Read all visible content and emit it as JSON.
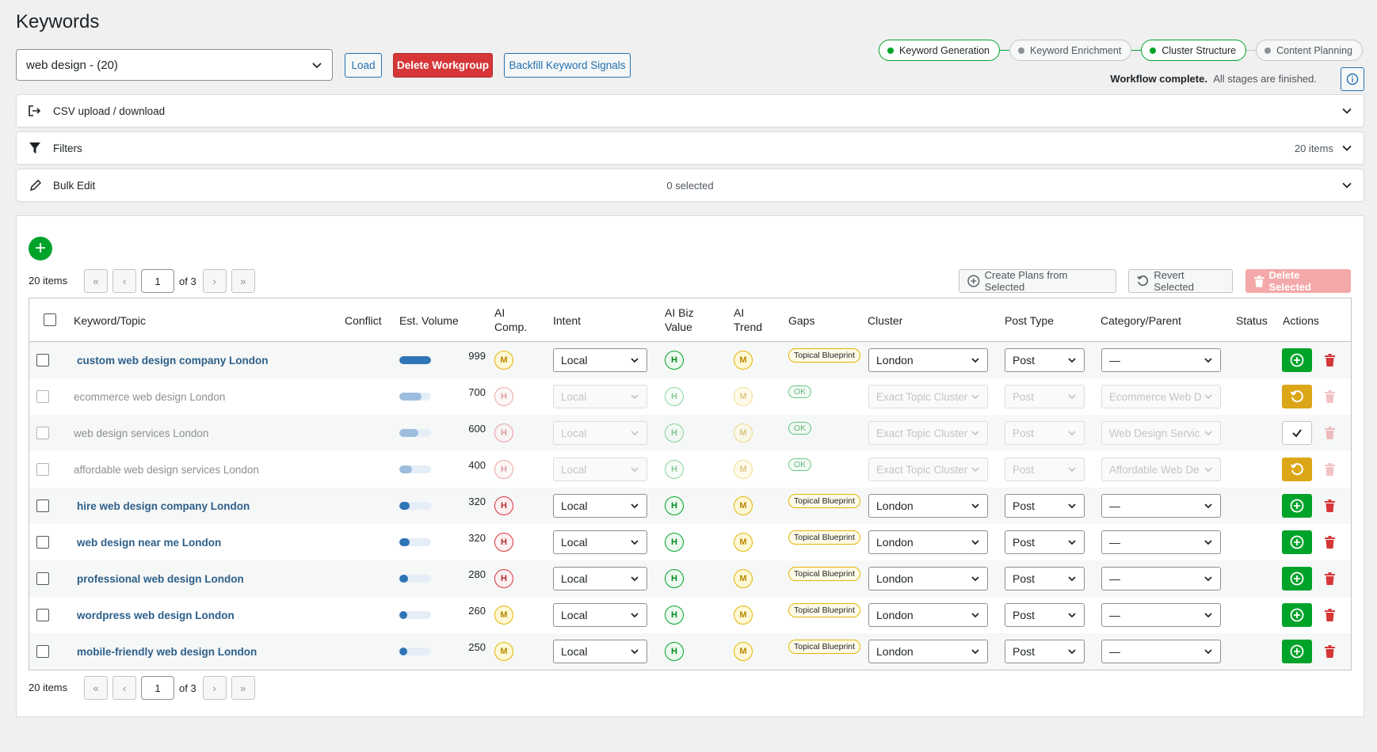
{
  "page": {
    "title": "Keywords"
  },
  "workgroup": {
    "selected": "web design - (20)"
  },
  "buttons": {
    "load": "Load",
    "delete_workgroup": "Delete Workgroup",
    "backfill": "Backfill Keyword Signals"
  },
  "workflow": {
    "steps": [
      {
        "label": "Keyword Generation",
        "done": true
      },
      {
        "label": "Keyword Enrichment",
        "done": false
      },
      {
        "label": "Cluster Structure",
        "done": true
      },
      {
        "label": "Content Planning",
        "done": false
      }
    ],
    "status_bold": "Workflow complete.",
    "status_text": "All stages are finished."
  },
  "accordions": {
    "csv": "CSV upload / download",
    "filters": "Filters",
    "filters_count": "20 items",
    "bulk": "Bulk Edit",
    "bulk_selected": "0 selected"
  },
  "pagination": {
    "items": "20 items",
    "page": "1",
    "of": "of 3",
    "first": "«",
    "prev": "‹",
    "next": "›",
    "last": "»"
  },
  "toolbar": {
    "create_plans": "Create Plans from Selected",
    "revert": "Revert Selected",
    "delete": "Delete Selected"
  },
  "columns": {
    "keyword": "Keyword/Topic",
    "conflict": "Conflict",
    "volume": "Est. Volume",
    "ai_comp_1": "AI",
    "ai_comp_2": "Comp.",
    "intent": "Intent",
    "ai_biz_1": "AI Biz",
    "ai_biz_2": "Value",
    "ai_trend_1": "AI",
    "ai_trend_2": "Trend",
    "gaps": "Gaps",
    "cluster": "Cluster",
    "post_type": "Post Type",
    "category": "Category/Parent",
    "status": "Status",
    "actions": "Actions"
  },
  "rows": [
    {
      "keyword": "custom web design company London",
      "volume": "999",
      "volume_fraction": 1.0,
      "comp": "M",
      "intent": "Local",
      "biz": "H",
      "trend": "M",
      "gaps": "Topical Blueprint",
      "cluster": "London",
      "post_type": "Post",
      "category": "—",
      "dim": false,
      "action": "plus"
    },
    {
      "keyword": "ecommerce web design London",
      "volume": "700",
      "volume_fraction": 0.7,
      "comp": "H",
      "intent": "Local",
      "biz": "H",
      "trend": "M",
      "gaps": "OK",
      "cluster": "Exact Topic Cluster",
      "post_type": "Post",
      "category": "Ecommerce Web D",
      "dim": true,
      "action": "undo"
    },
    {
      "keyword": "web design services London",
      "volume": "600",
      "volume_fraction": 0.6,
      "comp": "H",
      "intent": "Local",
      "biz": "H",
      "trend": "M",
      "gaps": "OK",
      "cluster": "Exact Topic Cluster",
      "post_type": "Post",
      "category": "Web Design Servic",
      "dim": true,
      "action": "check"
    },
    {
      "keyword": "affordable web design services London",
      "volume": "400",
      "volume_fraction": 0.4,
      "comp": "H",
      "intent": "Local",
      "biz": "H",
      "trend": "M",
      "gaps": "OK",
      "cluster": "Exact Topic Cluster",
      "post_type": "Post",
      "category": "Affordable Web De",
      "dim": true,
      "action": "undo"
    },
    {
      "keyword": "hire web design company London",
      "volume": "320",
      "volume_fraction": 0.32,
      "comp": "H",
      "intent": "Local",
      "biz": "H",
      "trend": "M",
      "gaps": "Topical Blueprint",
      "cluster": "London",
      "post_type": "Post",
      "category": "—",
      "dim": false,
      "action": "plus"
    },
    {
      "keyword": "web design near me London",
      "volume": "320",
      "volume_fraction": 0.32,
      "comp": "H",
      "intent": "Local",
      "biz": "H",
      "trend": "M",
      "gaps": "Topical Blueprint",
      "cluster": "London",
      "post_type": "Post",
      "category": "—",
      "dim": false,
      "action": "plus"
    },
    {
      "keyword": "professional web design London",
      "volume": "280",
      "volume_fraction": 0.28,
      "comp": "H",
      "intent": "Local",
      "biz": "H",
      "trend": "M",
      "gaps": "Topical Blueprint",
      "cluster": "London",
      "post_type": "Post",
      "category": "—",
      "dim": false,
      "action": "plus"
    },
    {
      "keyword": "wordpress web design London",
      "volume": "260",
      "volume_fraction": 0.26,
      "comp": "M",
      "intent": "Local",
      "biz": "H",
      "trend": "M",
      "gaps": "Topical Blueprint",
      "cluster": "London",
      "post_type": "Post",
      "category": "—",
      "dim": false,
      "action": "plus"
    },
    {
      "keyword": "mobile-friendly web design London",
      "volume": "250",
      "volume_fraction": 0.25,
      "comp": "M",
      "intent": "Local",
      "biz": "H",
      "trend": "M",
      "gaps": "Topical Blueprint",
      "cluster": "London",
      "post_type": "Post",
      "category": "—",
      "dim": false,
      "action": "plus"
    }
  ]
}
